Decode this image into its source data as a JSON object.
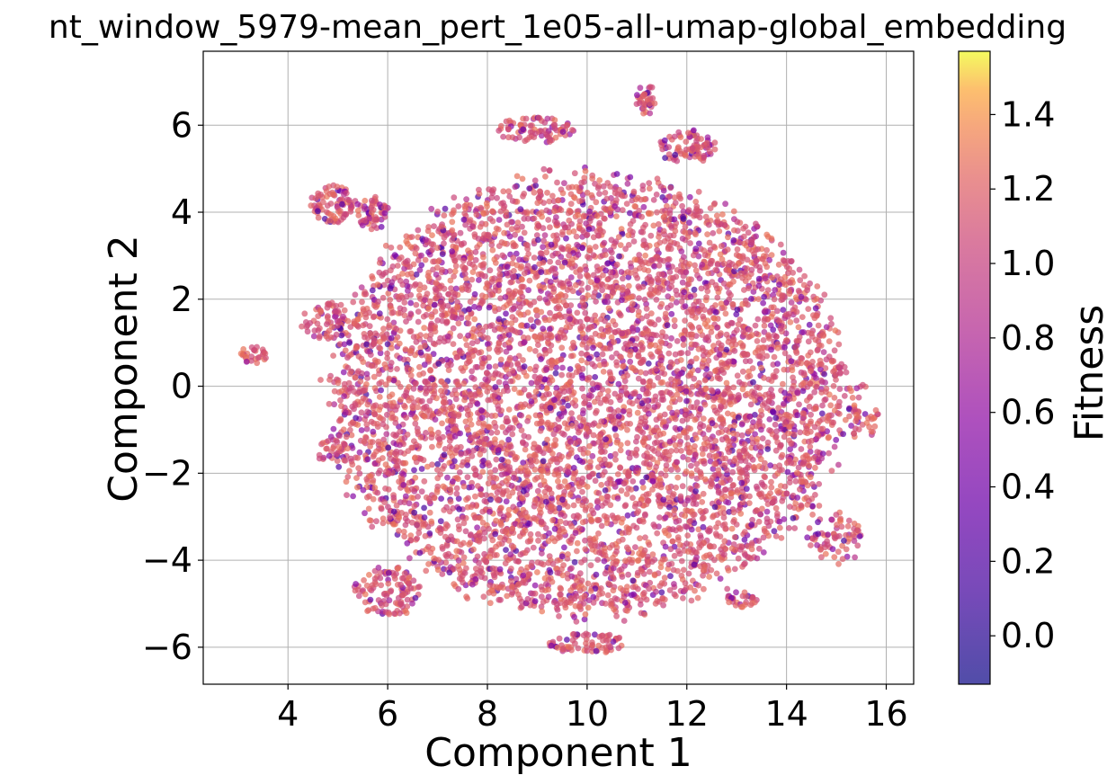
{
  "chart_data": {
    "type": "scatter",
    "title": "nt_window_5979-mean_pert_1e05-all-umap-global_embedding",
    "xlabel": "Component 1",
    "ylabel": "Component 2",
    "xlim": [
      2.3,
      16.55
    ],
    "ylim": [
      -6.85,
      7.7
    ],
    "xticks": [
      4,
      6,
      8,
      10,
      12,
      14,
      16
    ],
    "yticks": [
      -6,
      -4,
      -2,
      0,
      2,
      4,
      6
    ],
    "xtick_labels": [
      "4",
      "6",
      "8",
      "10",
      "12",
      "14",
      "16"
    ],
    "ytick_labels": [
      "−6",
      "−4",
      "−2",
      "0",
      "2",
      "4",
      "6"
    ],
    "grid": true,
    "colormap": "plasma",
    "point_alpha": 0.7,
    "colorbar": {
      "label": "Fitness",
      "range": [
        -0.13,
        1.57
      ],
      "ticks": [
        0.0,
        0.2,
        0.4,
        0.6,
        0.8,
        1.0,
        1.2,
        1.4
      ],
      "tick_labels": [
        "0.0",
        "0.2",
        "0.4",
        "0.6",
        "0.8",
        "1.0",
        "1.2",
        "1.4"
      ]
    },
    "points_summary": "dense cloud of points roughly spanning x 4-16, y -6 to 7; fitness mostly 1.0-1.3 with scattered low-fitness points",
    "clusters": [
      {
        "cx": 10.0,
        "cy": -0.2,
        "rx": 5.3,
        "ry": 5.2,
        "weight": 0.86
      },
      {
        "cx": 4.9,
        "cy": 4.2,
        "rx": 0.45,
        "ry": 0.45,
        "weight": 0.012
      },
      {
        "cx": 5.7,
        "cy": 4.0,
        "rx": 0.35,
        "ry": 0.4,
        "weight": 0.008
      },
      {
        "cx": 4.8,
        "cy": 1.5,
        "rx": 0.55,
        "ry": 0.45,
        "weight": 0.01
      },
      {
        "cx": 3.3,
        "cy": 0.7,
        "rx": 0.28,
        "ry": 0.25,
        "weight": 0.004
      },
      {
        "cx": 11.2,
        "cy": 6.6,
        "rx": 0.22,
        "ry": 0.38,
        "weight": 0.005
      },
      {
        "cx": 12.0,
        "cy": 5.5,
        "rx": 0.6,
        "ry": 0.4,
        "weight": 0.012
      },
      {
        "cx": 9.0,
        "cy": 5.9,
        "rx": 0.8,
        "ry": 0.3,
        "weight": 0.012
      },
      {
        "cx": 10.0,
        "cy": -5.9,
        "rx": 0.8,
        "ry": 0.25,
        "weight": 0.01
      },
      {
        "cx": 13.1,
        "cy": -4.9,
        "rx": 0.3,
        "ry": 0.2,
        "weight": 0.004
      },
      {
        "cx": 15.5,
        "cy": -0.6,
        "rx": 0.35,
        "ry": 0.7,
        "weight": 0.006
      },
      {
        "cx": 6.0,
        "cy": -4.7,
        "rx": 0.7,
        "ry": 0.6,
        "weight": 0.016
      },
      {
        "cx": 15.0,
        "cy": -3.5,
        "rx": 0.6,
        "ry": 0.6,
        "weight": 0.01
      },
      {
        "cx": 4.9,
        "cy": -1.5,
        "rx": 0.35,
        "ry": 0.35,
        "weight": 0.004
      }
    ]
  }
}
